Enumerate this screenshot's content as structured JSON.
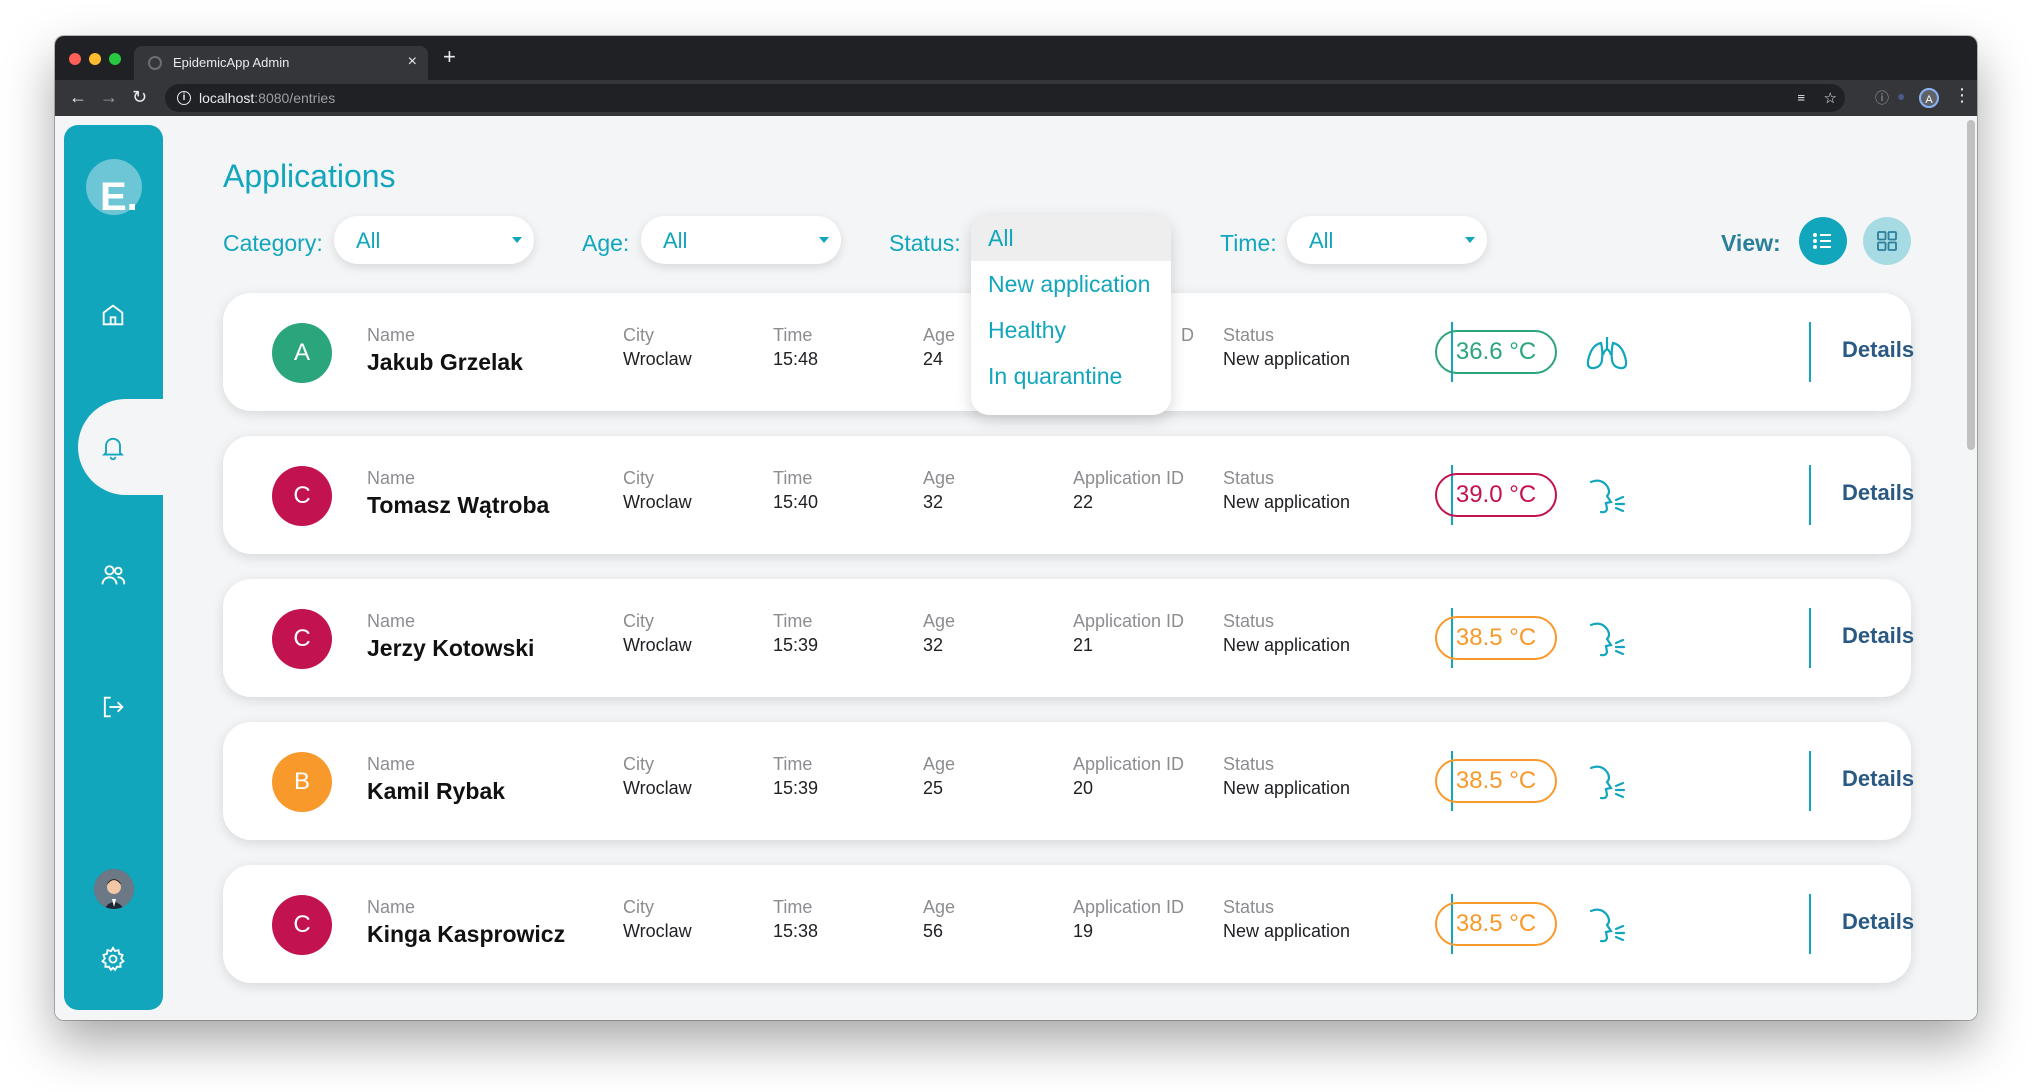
{
  "browser": {
    "tab_title": "EpidemicApp Admin",
    "tab_close": "×",
    "new_tab": "+",
    "url_host": "localhost",
    "url_path": ":8080/entries",
    "profile_initial": "A"
  },
  "sidebar": {
    "logo": "E.",
    "items": [
      "home-icon",
      "bell-icon",
      "users-icon",
      "logout-icon",
      "settings-icon"
    ]
  },
  "page": {
    "title": "Applications"
  },
  "filters": {
    "category": {
      "label": "Category:",
      "value": "All"
    },
    "age": {
      "label": "Age:",
      "value": "All"
    },
    "status": {
      "label": "Status:",
      "options": [
        "All",
        "New application",
        "Healthy",
        "In quarantine"
      ],
      "selected": "All"
    },
    "time": {
      "label": "Time:",
      "value": "All"
    }
  },
  "view": {
    "label": "View:",
    "active": "list"
  },
  "labels": {
    "name": "Name",
    "city": "City",
    "time": "Time",
    "age": "Age",
    "application_id": "Application ID",
    "status": "Status",
    "details": "Details",
    "clipped_id_fragment": "D"
  },
  "colors": {
    "accent": "#12a6bd",
    "green": "#2aa57c",
    "crimson": "#c2124f",
    "orange": "#f7992b"
  },
  "rows": [
    {
      "initial": "A",
      "avatar_color": "#2aa57c",
      "name": "Jakub Grzelak",
      "city": "Wroclaw",
      "time": "15:48",
      "age": "24",
      "application_id": "",
      "status": "New application",
      "temperature": "36.6 °C",
      "temp_color": "#2aa57c",
      "symptom_icon": "lungs-icon"
    },
    {
      "initial": "C",
      "avatar_color": "#c2124f",
      "name": "Tomasz Wątroba",
      "city": "Wroclaw",
      "time": "15:40",
      "age": "32",
      "application_id": "22",
      "status": "New application",
      "temperature": "39.0 °C",
      "temp_color": "#c2124f",
      "symptom_icon": "cough-icon"
    },
    {
      "initial": "C",
      "avatar_color": "#c2124f",
      "name": "Jerzy Kotowski",
      "city": "Wroclaw",
      "time": "15:39",
      "age": "32",
      "application_id": "21",
      "status": "New application",
      "temperature": "38.5 °C",
      "temp_color": "#f7992b",
      "symptom_icon": "cough-icon"
    },
    {
      "initial": "B",
      "avatar_color": "#f7992b",
      "name": "Kamil Rybak",
      "city": "Wroclaw",
      "time": "15:39",
      "age": "25",
      "application_id": "20",
      "status": "New application",
      "temperature": "38.5 °C",
      "temp_color": "#f7992b",
      "symptom_icon": "cough-icon"
    },
    {
      "initial": "C",
      "avatar_color": "#c2124f",
      "name": "Kinga Kasprowicz",
      "city": "Wroclaw",
      "time": "15:38",
      "age": "56",
      "application_id": "19",
      "status": "New application",
      "temperature": "38.5 °C",
      "temp_color": "#f7992b",
      "symptom_icon": "cough-icon"
    }
  ]
}
